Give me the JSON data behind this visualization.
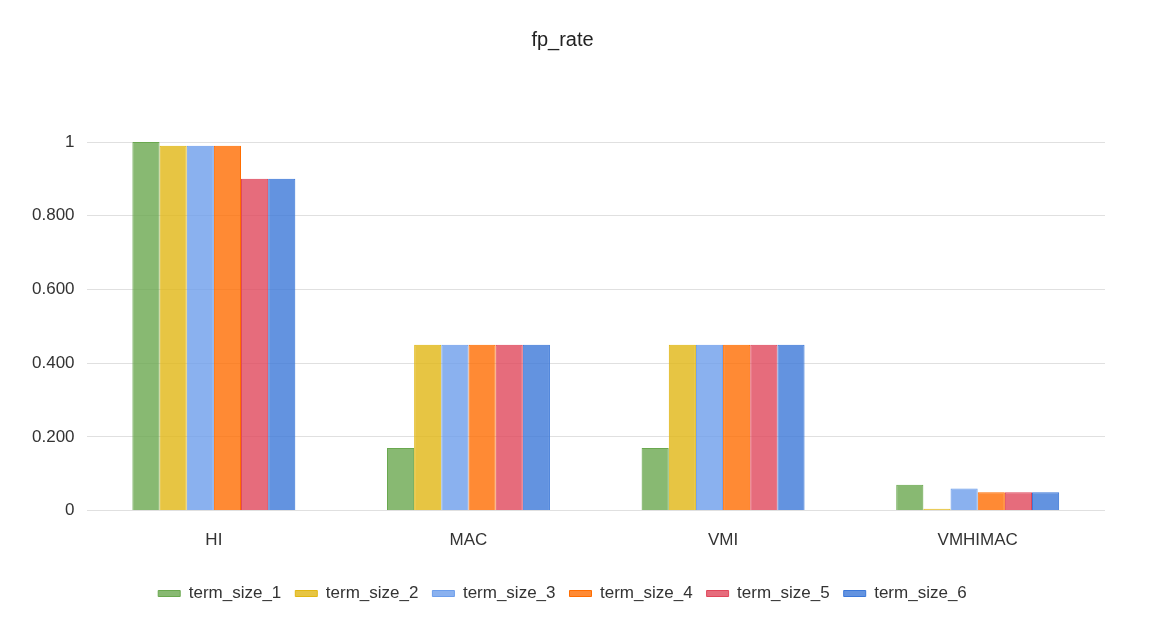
{
  "chart_data": {
    "type": "bar",
    "title": "fp_rate",
    "categories": [
      "HI",
      "MAC",
      "VMI",
      "VMHIMAC"
    ],
    "series": [
      {
        "name": "term_size_1",
        "color": "#6aa84f",
        "values": [
          1,
          0.17,
          0.17,
          0.07
        ]
      },
      {
        "name": "term_size_2",
        "color": "#e1b714",
        "values": [
          0.99,
          0.45,
          0.45,
          0.005
        ]
      },
      {
        "name": "term_size_3",
        "color": "#6d9eeb",
        "values": [
          0.99,
          0.45,
          0.45,
          0.06
        ]
      },
      {
        "name": "term_size_4",
        "color": "#ff6d01",
        "values": [
          0.99,
          0.45,
          0.45,
          0.05
        ]
      },
      {
        "name": "term_size_5",
        "color": "#e0475b",
        "values": [
          0.9,
          0.45,
          0.45,
          0.05
        ]
      },
      {
        "name": "term_size_6",
        "color": "#3c78d8",
        "values": [
          0.9,
          0.45,
          0.45,
          0.05
        ]
      }
    ],
    "ylim": [
      0,
      1
    ],
    "yticks": [
      0,
      {
        "value": 0.2,
        "label": "0.200"
      },
      {
        "value": 0.4,
        "label": "0.400"
      },
      {
        "value": 0.6,
        "label": "0.600"
      },
      {
        "value": 0.8,
        "label": "0.800"
      },
      1
    ],
    "grid": "y",
    "legend": "bottom"
  }
}
